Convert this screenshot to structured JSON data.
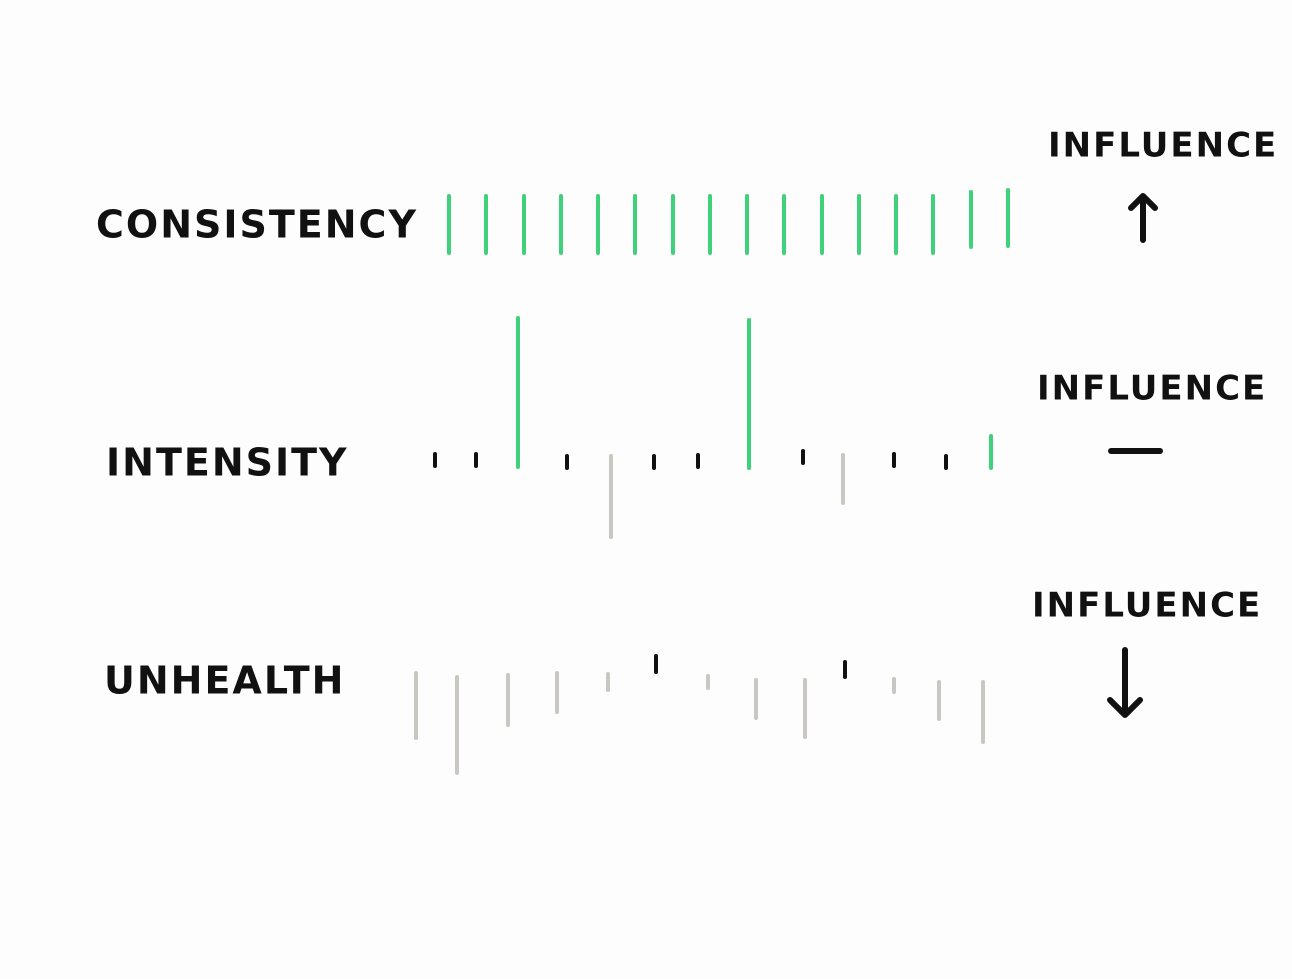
{
  "rows": [
    {
      "label": "CONSISTENCY",
      "influence": "INFLUENCE"
    },
    {
      "label": "INTENSITY",
      "influence": "INFLUENCE"
    },
    {
      "label": "UNHEALTH",
      "influence": "INFLUENCE"
    }
  ]
}
